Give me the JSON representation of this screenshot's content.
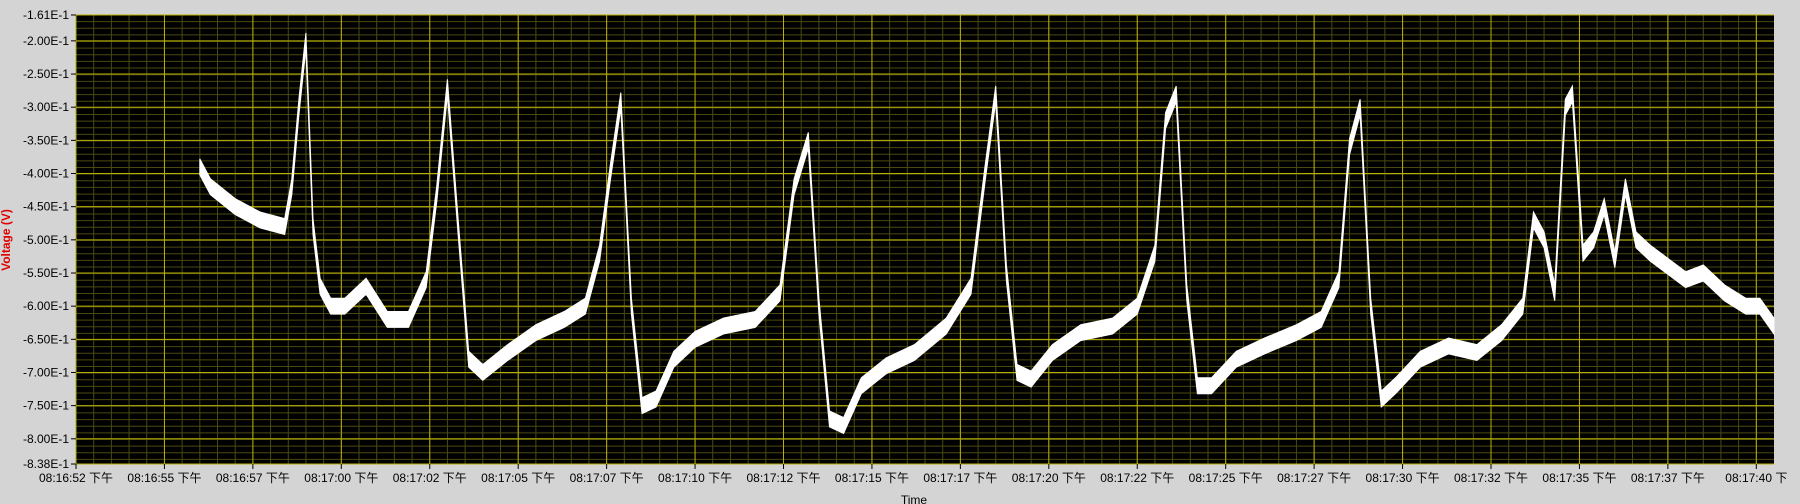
{
  "chart_data": {
    "type": "line",
    "title": "",
    "xlabel": "Time",
    "ylabel": "Voltage (V)",
    "ylim": [
      -0.838,
      -0.161
    ],
    "xlim_seconds_after_first_tick": [
      0,
      48
    ],
    "y_tick_labels": [
      "-1.61E-1",
      "-2.00E-1",
      "-2.50E-1",
      "-3.00E-1",
      "-3.50E-1",
      "-4.00E-1",
      "-4.50E-1",
      "-5.00E-1",
      "-5.50E-1",
      "-6.00E-1",
      "-6.50E-1",
      "-7.00E-1",
      "-7.50E-1",
      "-8.00E-1",
      "-8.38E-1"
    ],
    "y_tick_values": [
      -0.161,
      -0.2,
      -0.25,
      -0.3,
      -0.35,
      -0.4,
      -0.45,
      -0.5,
      -0.55,
      -0.6,
      -0.65,
      -0.7,
      -0.75,
      -0.8,
      -0.838
    ],
    "x_tick_labels": [
      "08:16:52 下午",
      "08:16:55 下午",
      "08:16:57 下午",
      "08:17:00 下午",
      "08:17:02 下午",
      "08:17:05 下午",
      "08:17:07 下午",
      "08:17:10 下午",
      "08:17:12 下午",
      "08:17:15 下午",
      "08:17:17 下午",
      "08:17:20 下午",
      "08:17:22 下午",
      "08:17:25 下午",
      "08:17:27 下午",
      "08:17:30 下午",
      "08:17:32 下午",
      "08:17:35 下午",
      "08:17:37 下午",
      "08:17:40 下"
    ],
    "x_tick_seconds": [
      0,
      2.5,
      5,
      7.5,
      10,
      12.5,
      15,
      17.5,
      20,
      22.5,
      25,
      27.5,
      30,
      32.5,
      35,
      37.5,
      40,
      42.5,
      45,
      47.5
    ],
    "grid": true,
    "background": "#000000",
    "major_grid_color": "#b8b000",
    "minor_grid_color": "#4a4a10",
    "series": [
      {
        "color": "#ffffff",
        "band_half_width": 0.012,
        "x": [
          3.5,
          3.8,
          4.5,
          5.2,
          5.9,
          6.1,
          6.3,
          6.5,
          6.7,
          6.9,
          7.2,
          7.6,
          8.2,
          8.8,
          9.4,
          9.9,
          10.2,
          10.5,
          10.8,
          11.1,
          11.5,
          12.2,
          13,
          13.8,
          14.4,
          14.8,
          15.1,
          15.4,
          15.7,
          16,
          16.4,
          16.9,
          17.5,
          18.3,
          19.2,
          19.9,
          20.3,
          20.7,
          21,
          21.3,
          21.7,
          22.2,
          22.9,
          23.7,
          24.6,
          25.3,
          25.7,
          26,
          26.3,
          26.6,
          27,
          27.6,
          28.4,
          29.3,
          30,
          30.5,
          30.8,
          31.1,
          31.4,
          31.7,
          32.1,
          32.8,
          33.6,
          34.5,
          35.2,
          35.7,
          36,
          36.3,
          36.6,
          36.9,
          37.3,
          38,
          38.8,
          39.6,
          40.3,
          40.9,
          41.2,
          41.5,
          41.8,
          42.1,
          42.3,
          42.6,
          42.9,
          43.2,
          43.5,
          43.8,
          44.1,
          44.5,
          45,
          45.5,
          46,
          46.6,
          47.2,
          47.6,
          48
        ],
        "y": [
          -0.39,
          -0.42,
          -0.45,
          -0.47,
          -0.48,
          -0.42,
          -0.3,
          -0.2,
          -0.48,
          -0.57,
          -0.6,
          -0.6,
          -0.57,
          -0.62,
          -0.62,
          -0.56,
          -0.43,
          -0.27,
          -0.48,
          -0.68,
          -0.7,
          -0.67,
          -0.64,
          -0.62,
          -0.6,
          -0.52,
          -0.4,
          -0.29,
          -0.6,
          -0.75,
          -0.74,
          -0.68,
          -0.65,
          -0.63,
          -0.62,
          -0.58,
          -0.42,
          -0.35,
          -0.6,
          -0.77,
          -0.78,
          -0.72,
          -0.69,
          -0.67,
          -0.63,
          -0.57,
          -0.4,
          -0.28,
          -0.55,
          -0.7,
          -0.71,
          -0.67,
          -0.64,
          -0.63,
          -0.6,
          -0.52,
          -0.32,
          -0.28,
          -0.58,
          -0.72,
          -0.72,
          -0.68,
          -0.66,
          -0.64,
          -0.62,
          -0.56,
          -0.36,
          -0.3,
          -0.6,
          -0.74,
          -0.72,
          -0.68,
          -0.66,
          -0.67,
          -0.64,
          -0.6,
          -0.47,
          -0.5,
          -0.58,
          -0.3,
          -0.28,
          -0.52,
          -0.5,
          -0.45,
          -0.53,
          -0.42,
          -0.5,
          -0.52,
          -0.54,
          -0.56,
          -0.55,
          -0.58,
          -0.6,
          -0.6,
          -0.63
        ]
      }
    ]
  }
}
